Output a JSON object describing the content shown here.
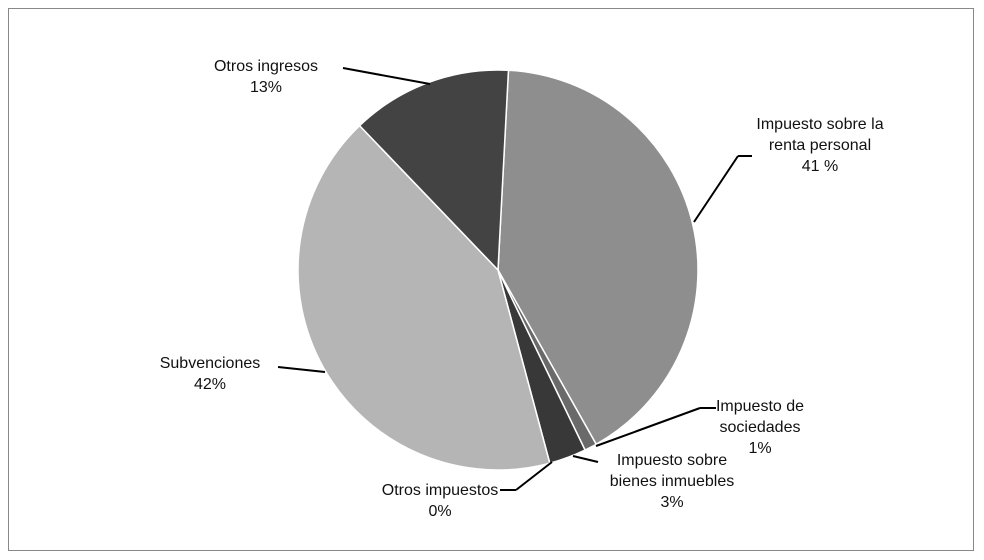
{
  "chart_data": {
    "type": "pie",
    "categories": [
      "Impuesto sobre la renta personal",
      "Impuesto de sociedades",
      "Impuesto sobre bienes inmuebles",
      "Otros impuestos",
      "Subvenciones",
      "Otros ingresos"
    ],
    "values": [
      41,
      1,
      3,
      0,
      42,
      13
    ],
    "value_labels": [
      "41 %",
      "1%",
      "3%",
      "0%",
      "42%",
      "13%"
    ],
    "colors": [
      "#8e8e8e",
      "#6a6a6a",
      "#383838",
      "#8e8e8e",
      "#b5b5b5",
      "#434343"
    ]
  }
}
